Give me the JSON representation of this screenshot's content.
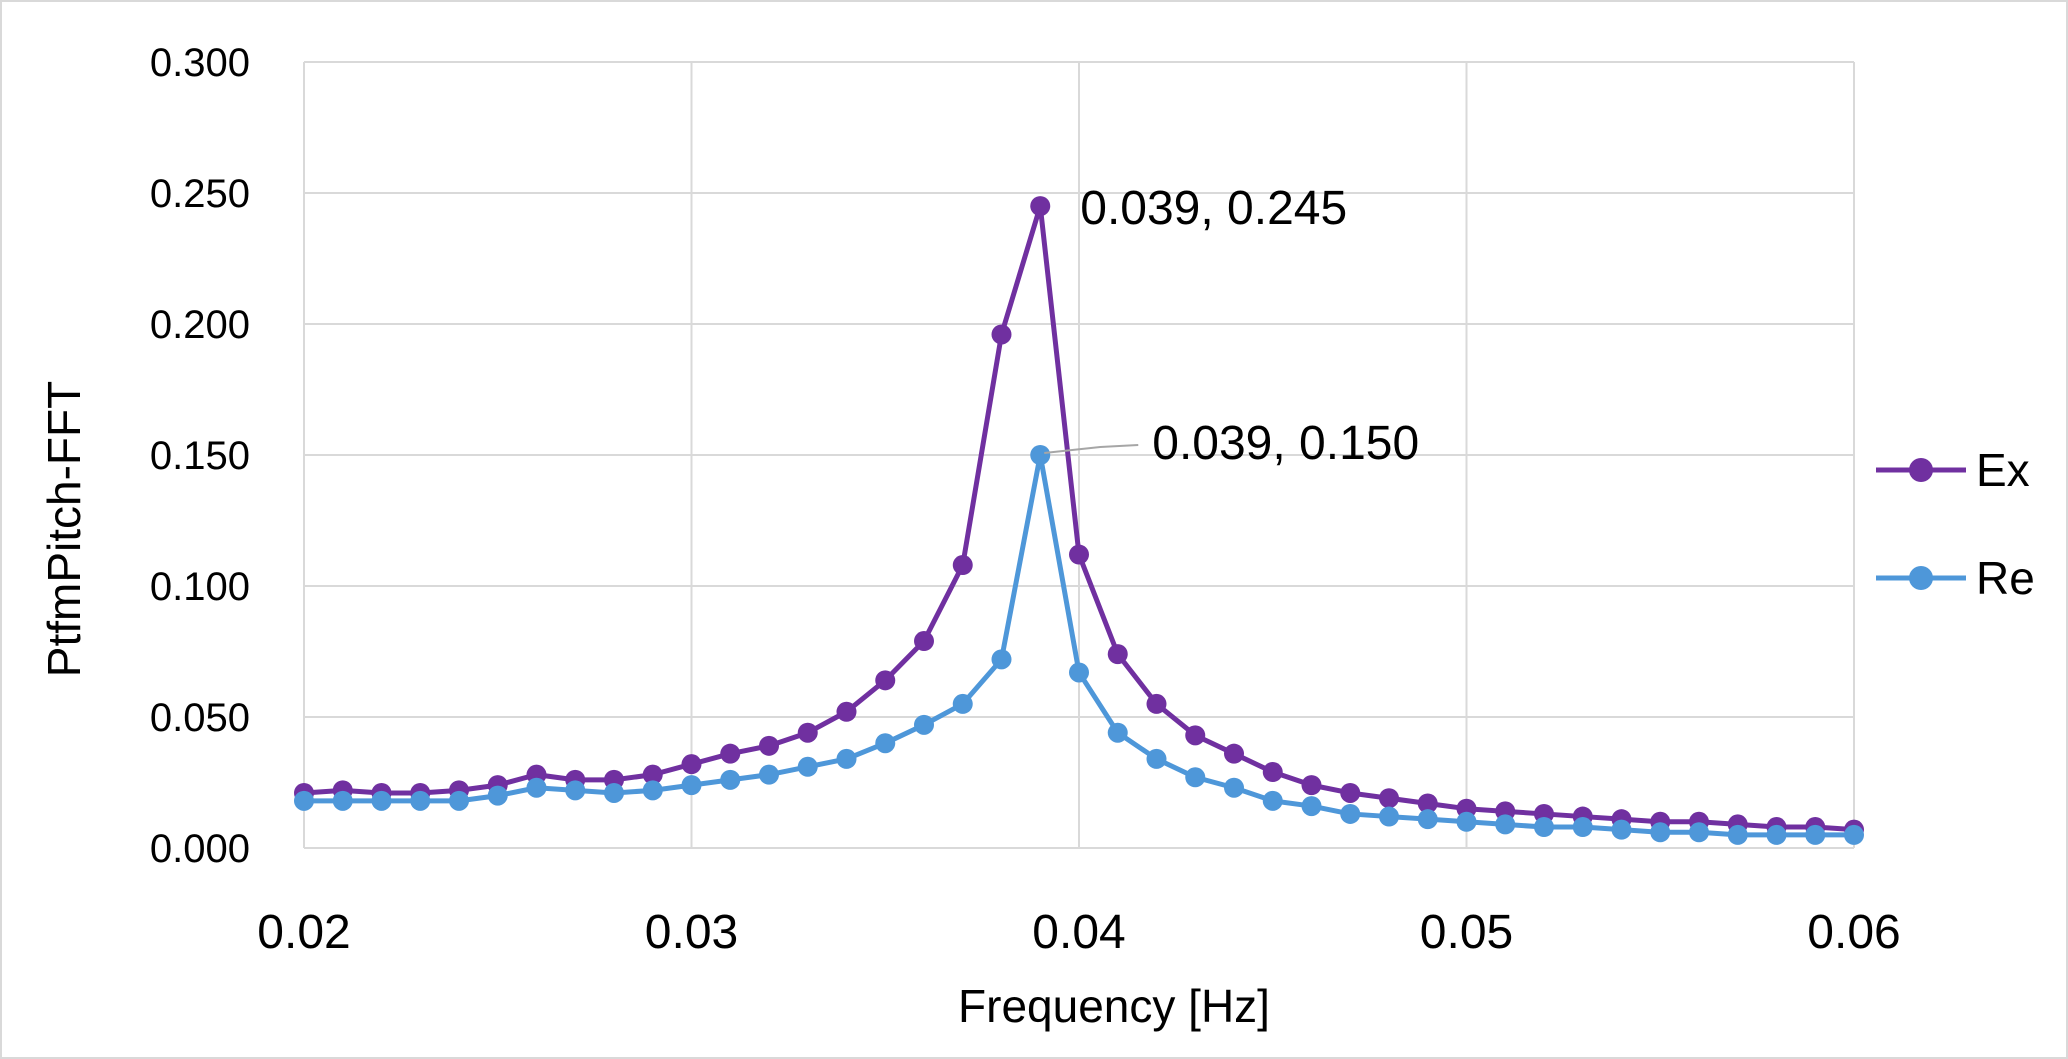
{
  "chart_data": {
    "type": "line",
    "title": "",
    "xlabel": "Frequency [Hz]",
    "ylabel": "PtfmPitch-FFT",
    "xlim": [
      0.02,
      0.06
    ],
    "ylim": [
      0.0,
      0.3
    ],
    "x_ticks": [
      "0.02",
      "0.03",
      "0.04",
      "0.05",
      "0.06"
    ],
    "y_ticks": [
      "0.000",
      "0.050",
      "0.100",
      "0.150",
      "0.200",
      "0.250",
      "0.300"
    ],
    "grid": true,
    "legend_position": "right",
    "series": [
      {
        "name": "Ex",
        "color": "#7030a0",
        "x": [
          0.02,
          0.021,
          0.022,
          0.023,
          0.024,
          0.025,
          0.026,
          0.027,
          0.028,
          0.029,
          0.03,
          0.031,
          0.032,
          0.033,
          0.034,
          0.035,
          0.036,
          0.037,
          0.038,
          0.039,
          0.04,
          0.041,
          0.042,
          0.043,
          0.044,
          0.045,
          0.046,
          0.047,
          0.048,
          0.049,
          0.05,
          0.051,
          0.052,
          0.053,
          0.054,
          0.055,
          0.056,
          0.057,
          0.058,
          0.059,
          0.06
        ],
        "y": [
          0.021,
          0.022,
          0.021,
          0.021,
          0.022,
          0.024,
          0.028,
          0.026,
          0.026,
          0.028,
          0.032,
          0.036,
          0.039,
          0.044,
          0.052,
          0.064,
          0.079,
          0.108,
          0.196,
          0.245,
          0.112,
          0.074,
          0.055,
          0.043,
          0.036,
          0.029,
          0.024,
          0.021,
          0.019,
          0.017,
          0.015,
          0.014,
          0.013,
          0.012,
          0.011,
          0.01,
          0.01,
          0.009,
          0.008,
          0.008,
          0.007
        ]
      },
      {
        "name": "Re",
        "color": "#4e97d9",
        "x": [
          0.02,
          0.021,
          0.022,
          0.023,
          0.024,
          0.025,
          0.026,
          0.027,
          0.028,
          0.029,
          0.03,
          0.031,
          0.032,
          0.033,
          0.034,
          0.035,
          0.036,
          0.037,
          0.038,
          0.039,
          0.04,
          0.041,
          0.042,
          0.043,
          0.044,
          0.045,
          0.046,
          0.047,
          0.048,
          0.049,
          0.05,
          0.051,
          0.052,
          0.053,
          0.054,
          0.055,
          0.056,
          0.057,
          0.058,
          0.059,
          0.06
        ],
        "y": [
          0.018,
          0.018,
          0.018,
          0.018,
          0.018,
          0.02,
          0.023,
          0.022,
          0.021,
          0.022,
          0.024,
          0.026,
          0.028,
          0.031,
          0.034,
          0.04,
          0.047,
          0.055,
          0.072,
          0.15,
          0.067,
          0.044,
          0.034,
          0.027,
          0.023,
          0.018,
          0.016,
          0.013,
          0.012,
          0.011,
          0.01,
          0.009,
          0.008,
          0.008,
          0.007,
          0.006,
          0.006,
          0.005,
          0.005,
          0.005,
          0.005
        ]
      }
    ],
    "annotations": [
      {
        "series": "Ex",
        "x": 0.039,
        "y": 0.245,
        "text": "0.039, 0.245"
      },
      {
        "series": "Re",
        "x": 0.039,
        "y": 0.15,
        "text": "0.039, 0.150"
      }
    ]
  }
}
